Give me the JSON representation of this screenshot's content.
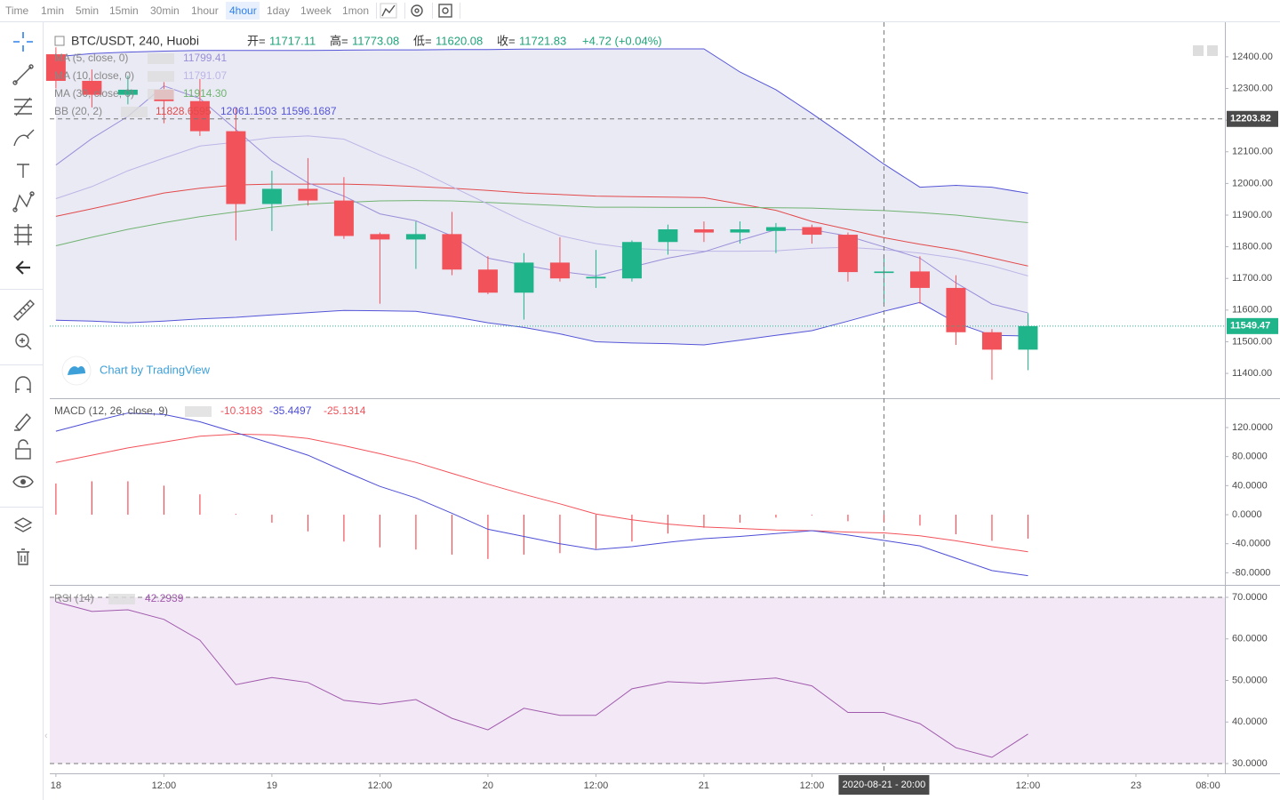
{
  "toolbar": {
    "intervals": [
      "Time",
      "1min",
      "5min",
      "15min",
      "30min",
      "1hour",
      "4hour",
      "1day",
      "1week",
      "1mon"
    ],
    "active": 6
  },
  "chart_data": [
    {
      "type": "candlestick",
      "symbol": "BTC/USDT, 240, Huobi",
      "header": {
        "open_label": "开=",
        "high_label": "高=",
        "low_label": "低=",
        "close_label": "收=",
        "change": "+4.72 (+0.04%)"
      },
      "up_color": "#20b48a",
      "down_color": "#f2525a",
      "candles": {
        "open": [
          12408,
          12324,
          12280,
          12296,
          12260,
          12165,
          11935,
          11983,
          11946,
          11840,
          11823,
          11840,
          11728,
          11655,
          11750,
          11700,
          11700,
          11815,
          11855,
          11845,
          11850,
          11862,
          11838,
          11717.11,
          11722,
          11670,
          11530,
          11475
        ],
        "high": [
          12430,
          12360,
          12340,
          12320,
          12330,
          12240,
          12040,
          12080,
          12020,
          11845,
          11880,
          11910,
          11770,
          11780,
          11830,
          11790,
          11820,
          11870,
          11880,
          11880,
          11875,
          11870,
          11845,
          11773.08,
          11770,
          11710,
          11540,
          11590
        ],
        "low": [
          12300,
          12240,
          12250,
          12190,
          12150,
          11820,
          11850,
          11930,
          11825,
          11620,
          11730,
          11710,
          11650,
          11570,
          11690,
          11670,
          11690,
          11775,
          11815,
          11810,
          11780,
          11810,
          11690,
          11620.08,
          11620,
          11490,
          11380,
          11410
        ],
        "close": [
          12324,
          12280,
          12296,
          12260,
          12165,
          11935,
          11983,
          11946,
          11834,
          11823,
          11840,
          11728,
          11655,
          11750,
          11700,
          11705,
          11815,
          11855,
          11845,
          11855,
          11862,
          11838,
          11720,
          11721.83,
          11670,
          11530,
          11475,
          11549.47
        ]
      },
      "series": [
        {
          "name": "MA (5, close, 0)",
          "color": "#9a8fd8",
          "legend_value": "11799.41",
          "values": [
            12058,
            12142,
            12212,
            12308,
            12268,
            12170,
            12072,
            12002,
            11960,
            11904,
            11882,
            11834,
            11764,
            11742,
            11722,
            11708,
            11736,
            11764,
            11784,
            11820,
            11854,
            11854,
            11834,
            11799.41,
            11764,
            11686,
            11619,
            11591
          ]
        },
        {
          "name": "MA (10, close, 0)",
          "color": "#bdb5e6",
          "legend_value": "11791.07",
          "values": [
            11952,
            11990,
            12040,
            12080,
            12118,
            12130,
            12145,
            12150,
            12140,
            12090,
            12045,
            11990,
            11935,
            11880,
            11835,
            11810,
            11795,
            11790,
            11786,
            11786,
            11787,
            11795,
            11798,
            11791.07,
            11780,
            11764,
            11740,
            11708
          ]
        },
        {
          "name": "MA (30, close, 0)",
          "color": "#6fb36f",
          "legend_value": "11914.30",
          "values": [
            11803,
            11830,
            11855,
            11876,
            11895,
            11910,
            11925,
            11935,
            11940,
            11945,
            11946,
            11945,
            11940,
            11935,
            11930,
            11925,
            11925,
            11924,
            11924,
            11924,
            11923,
            11922,
            11918,
            11914.3,
            11908,
            11900,
            11888,
            11876
          ]
        }
      ],
      "bands": {
        "name": "BB (20, 2)",
        "fill": "#e6e6f3",
        "basis": {
          "color": "#e24a4a",
          "legend_value": "11828.6595",
          "values": [
            11896,
            11920,
            11945,
            11970,
            11985,
            11995,
            11998,
            11998,
            11998,
            11995,
            11990,
            11985,
            11978,
            11970,
            11965,
            11960,
            11958,
            11957,
            11955,
            11935,
            11915,
            11880,
            11855,
            11828.6595,
            11808,
            11790,
            11765,
            11739
          ]
        },
        "upper": {
          "color": "#5555d8",
          "legend_value": "12061.1503",
          "values": [
            12400,
            12410,
            12415,
            12418,
            12420,
            12420,
            12420,
            12420,
            12421,
            12422,
            12422,
            12423,
            12423,
            12424,
            12424,
            12425,
            12425,
            12425,
            12425,
            12352,
            12296,
            12221,
            12142,
            12061.1503,
            11988,
            11994,
            11988,
            11969
          ]
        },
        "lower": {
          "color": "#5555d8",
          "legend_value": "11596.1687",
          "values": [
            11568,
            11565,
            11560,
            11565,
            11572,
            11577,
            11585,
            11592,
            11599,
            11598,
            11596,
            11580,
            11560,
            11545,
            11525,
            11500,
            11496,
            11494,
            11490,
            11505,
            11520,
            11535,
            11565,
            11596.1687,
            11624,
            11560,
            11520,
            11518
          ]
        }
      },
      "ylim": [
        11321.6,
        12509.2
      ],
      "yticks": [
        {
          "value": 11400,
          "label": "11400.00"
        },
        {
          "value": 11500,
          "label": "11500.00"
        },
        {
          "value": 11600,
          "label": "11600.00"
        },
        {
          "value": 11700,
          "label": "11700.00"
        },
        {
          "value": 11800,
          "label": "11800.00"
        },
        {
          "value": 11900,
          "label": "11900.00"
        },
        {
          "value": 12000,
          "label": "12000.00"
        },
        {
          "value": 12100,
          "label": "12100.00"
        },
        {
          "value": 12200,
          "label": "12200.00"
        },
        {
          "value": 12300,
          "label": "12300.00"
        },
        {
          "value": 12400,
          "label": "12400.00"
        }
      ],
      "xlim": [
        -0.17,
        32.47
      ],
      "xticks": [
        {
          "value": 0,
          "label": "18"
        },
        {
          "value": 3,
          "label": "12:00"
        },
        {
          "value": 6,
          "label": "19"
        },
        {
          "value": 9,
          "label": "12:00"
        },
        {
          "value": 12,
          "label": "20"
        },
        {
          "value": 15,
          "label": "12:00"
        },
        {
          "value": 18,
          "label": "21"
        },
        {
          "value": 21,
          "label": "12:00"
        },
        {
          "value": 27,
          "label": "12:00"
        },
        {
          "value": 30,
          "label": "23"
        },
        {
          "value": 32,
          "label": "08:00"
        }
      ],
      "last_price": 11549.47,
      "crosshair": {
        "index": 23,
        "price": 12203.82,
        "label": "2020-08-21 - 20:00"
      },
      "watermark": "Chart by TradingView"
    },
    {
      "type": "macd",
      "name": "MACD (12, 26, close, 9)",
      "histogram": {
        "color": "#f2525a",
        "values": [
          43,
          46,
          46,
          40,
          28,
          1,
          -11,
          -23,
          -37,
          -45,
          -48,
          -55,
          -61,
          -55,
          -53,
          -47,
          -37,
          -26,
          -18,
          -11,
          -4,
          -1,
          -9,
          -10.3183,
          -15,
          -27,
          -36,
          -33
        ]
      },
      "macd": {
        "color": "#4d4dd6",
        "values": [
          115,
          128,
          140,
          138,
          128,
          113,
          98,
          82,
          60,
          39,
          23,
          2,
          -20,
          -30,
          -40,
          -48,
          -44,
          -38,
          -33,
          -30,
          -26,
          -22,
          -28,
          -35.4497,
          -43,
          -60,
          -77,
          -84
        ]
      },
      "signal": {
        "color": "#f2525a",
        "values": [
          72,
          82,
          92,
          100,
          108,
          111,
          110,
          105,
          95,
          84,
          72,
          57,
          42,
          28,
          15,
          1,
          -7,
          -13,
          -17,
          -19,
          -21,
          -22,
          -24,
          -25.1314,
          -29,
          -36,
          -44,
          -51
        ]
      },
      "ylim": [
        -96.7,
        159.2
      ],
      "yticks": [
        {
          "value": 120,
          "label": "120.0000"
        },
        {
          "value": 80,
          "label": "80.0000"
        },
        {
          "value": 40,
          "label": "40.0000"
        },
        {
          "value": 0,
          "label": "0.0000"
        },
        {
          "value": -40,
          "label": "-40.0000"
        },
        {
          "value": -80,
          "label": "-80.0000"
        }
      ]
    },
    {
      "type": "line",
      "name": "RSI (14)",
      "series": [
        {
          "color": "#a05aad",
          "values": [
            68.9,
            66.6,
            67,
            64.7,
            59.7,
            49,
            50.7,
            49.5,
            45.2,
            44.3,
            45.4,
            40.9,
            38.1,
            43.3,
            41.6,
            41.6,
            48,
            49.7,
            49.3,
            50,
            50.6,
            48.7,
            42.3,
            42.2939,
            39.6,
            33.8,
            31.5,
            37.1
          ]
        }
      ],
      "band": {
        "upper": 70,
        "lower": 30,
        "fill": "#f3e8f5"
      },
      "ylim": [
        27.65,
        72.78
      ],
      "yticks": [
        {
          "value": 70,
          "label": "70.0000"
        },
        {
          "value": 60,
          "label": "60.0000"
        },
        {
          "value": 50,
          "label": "50.0000"
        },
        {
          "value": 40,
          "label": "40.0000"
        },
        {
          "value": 30,
          "label": "30.0000"
        }
      ]
    }
  ]
}
